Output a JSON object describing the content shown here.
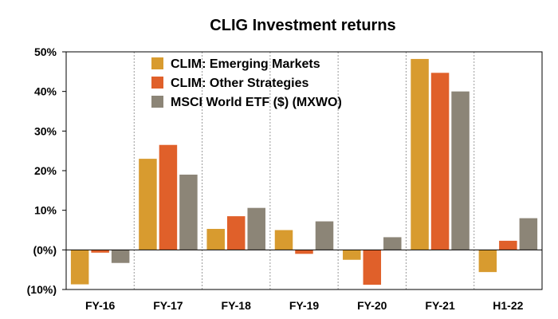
{
  "chart_data": {
    "type": "bar",
    "title": "CLIG Investment returns",
    "xlabel": "",
    "ylabel": "",
    "categories": [
      "FY-16",
      "FY-17",
      "FY-18",
      "FY-19",
      "FY-20",
      "FY-21",
      "H1-22"
    ],
    "ylim": [
      -10,
      50
    ],
    "yticks": [
      50,
      40,
      30,
      20,
      10,
      0,
      -10
    ],
    "ytick_labels": [
      "50%",
      "40%",
      "30%",
      "20%",
      "10%",
      "(0%)",
      "(10%)"
    ],
    "grid": "vertical dotted separators",
    "legend_position": "top-left",
    "series": [
      {
        "name": "CLIM: Emerging Markets",
        "color": "#d89b2f",
        "values": [
          -8.7,
          23.0,
          5.3,
          5.0,
          -2.5,
          48.2,
          -5.6
        ]
      },
      {
        "name": "CLIM: Other Strategies",
        "color": "#e0602a",
        "values": [
          -0.7,
          26.5,
          8.5,
          -1.0,
          -8.8,
          44.7,
          2.3
        ]
      },
      {
        "name": "MSCI World ETF ($) (MXWO)",
        "color": "#8c8577",
        "values": [
          -3.3,
          19.0,
          10.6,
          7.2,
          3.2,
          40.0,
          8.0
        ]
      }
    ]
  }
}
